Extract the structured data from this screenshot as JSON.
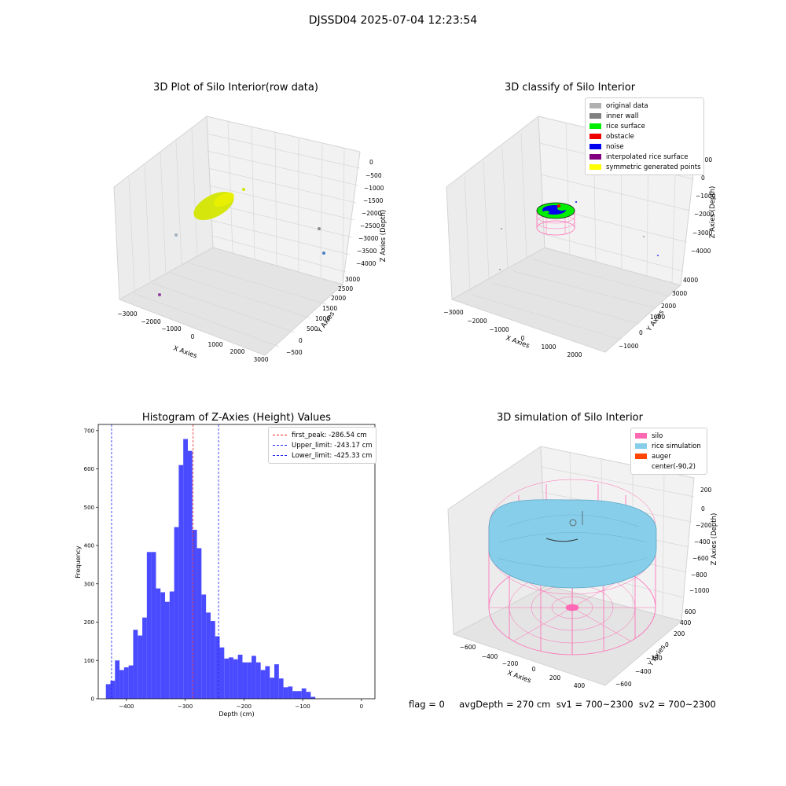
{
  "figure": {
    "suptitle": "DJSSD04 2025-07-04 12:23:54",
    "status_text": "flag = 0     avgDepth = 270 cm  sv1 = 700~2300  sv2 = 700~2300"
  },
  "chart_data": [
    {
      "type": "scatter",
      "title": "3D Plot of Silo Interior(row data)",
      "xlabel": "X Axies",
      "ylabel": "Y Axies",
      "zlabel": "Z Axies (Depth)",
      "x_ticks": [
        "−3000",
        "−2000",
        "−1000",
        "0",
        "1000",
        "2000",
        "3000"
      ],
      "y_ticks": [
        "−500",
        "0",
        "500",
        "1000",
        "1500",
        "2000",
        "2500",
        "3000"
      ],
      "z_ticks": [
        "0",
        "−500",
        "−1000",
        "−1500",
        "−2000",
        "−2500",
        "−3000",
        "−3500",
        "−4000"
      ],
      "series": [
        {
          "color": "#d4e600",
          "points": [
            [
              -300,
              2200,
              -1600
            ],
            [
              -100,
              2300,
              -1550
            ],
            [
              100,
              2250,
              -1500
            ]
          ]
        },
        {
          "color": "#a0b0c0",
          "points": [
            [
              -1800,
              1500,
              -3300
            ]
          ]
        },
        {
          "color": "#8a8a8a",
          "points": [
            [
              2500,
              300,
              -2800
            ]
          ]
        },
        {
          "color": "#4a7fc0",
          "points": [
            [
              2700,
              200,
              -3600
            ]
          ]
        },
        {
          "color": "#9040a0",
          "points": [
            [
              -2800,
              -300,
              -4200
            ]
          ]
        }
      ]
    },
    {
      "type": "scatter",
      "title": "3D classify of Silo Interior",
      "xlabel": "X Axies",
      "ylabel": "Y Axies",
      "zlabel": "Z Axies (Depth)",
      "x_ticks": [
        "−3000",
        "−2000",
        "−1000",
        "0",
        "1000",
        "2000"
      ],
      "y_ticks": [
        "−1000",
        "0",
        "1000",
        "2000",
        "3000",
        "4000"
      ],
      "z_ticks": [
        "1000",
        "0",
        "−1000",
        "−2000",
        "−3000",
        "−4000"
      ],
      "legend": [
        {
          "label": "original data",
          "color": "#b0b0b0"
        },
        {
          "label": "inner wall",
          "color": "#808080"
        },
        {
          "label": "rice surface",
          "color": "#00ee00"
        },
        {
          "label": "obstacle",
          "color": "#ee0000"
        },
        {
          "label": "noise",
          "color": "#0000ee"
        },
        {
          "label": "interpolated rice surface",
          "color": "#800080"
        },
        {
          "label": "symmetric generated points",
          "color": "#ffff00"
        }
      ]
    },
    {
      "type": "bar",
      "title": "Histogram of Z-Axies (Height) Values",
      "xlabel": "Depth (cm)",
      "ylabel": "Frequency",
      "xlim": [
        -448,
        23
      ],
      "ylim": [
        0,
        716
      ],
      "x_ticks": [
        -400,
        -300,
        -200,
        -100,
        0
      ],
      "x_tick_labels": [
        "−400",
        "−300",
        "−200",
        "−100",
        "0"
      ],
      "y_ticks": [
        0,
        100,
        200,
        300,
        400,
        500,
        600,
        700
      ],
      "bin_start": -435,
      "bin_width": 7.75,
      "values": [
        38,
        47,
        100,
        75,
        82,
        87,
        180,
        165,
        212,
        383,
        383,
        288,
        278,
        253,
        280,
        448,
        610,
        678,
        647,
        441,
        393,
        272,
        225,
        203,
        163,
        134,
        105,
        108,
        103,
        115,
        95,
        95,
        112,
        95,
        75,
        85,
        55,
        90,
        53,
        30,
        32,
        20,
        20,
        27,
        18,
        5
      ],
      "bar_color": "#4040ff",
      "lines": [
        {
          "label": "first_peak: -286.54 cm",
          "x": -286.54,
          "color": "#ee2222"
        },
        {
          "label": "Upper_limit: -243.17 cm",
          "x": -243.17,
          "color": "#2222ee"
        },
        {
          "label": "Lower_limit: -425.33 cm",
          "x": -425.33,
          "color": "#2222ee"
        }
      ]
    },
    {
      "type": "surface",
      "title": "3D simulation of Silo Interior",
      "xlabel": "X Axies",
      "ylabel": "Y Axies",
      "zlabel": "Z Axies (Depth)",
      "x_ticks": [
        "−600",
        "−400",
        "−200",
        "0",
        "200",
        "400"
      ],
      "y_ticks": [
        "−600",
        "−400",
        "−200",
        "0",
        "200",
        "400",
        "600"
      ],
      "z_ticks": [
        "200",
        "0",
        "−200",
        "−400",
        "−600",
        "−800",
        "−1000"
      ],
      "legend": [
        {
          "label": "silo",
          "color": "#ff69b4"
        },
        {
          "label": "rice simulation",
          "color": "#87ceeb"
        },
        {
          "label": "auger",
          "color": "#ff4500"
        },
        {
          "label": "center(-90,2)",
          "color": ""
        }
      ]
    }
  ]
}
